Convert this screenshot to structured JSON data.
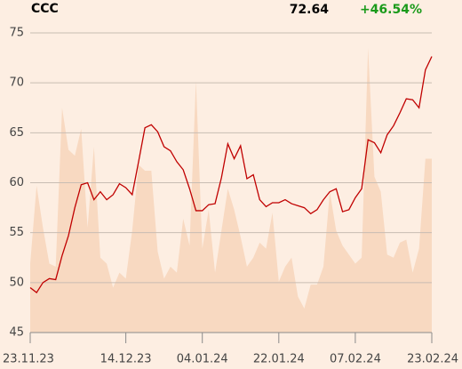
{
  "chart_data": {
    "type": "line",
    "title": "CCC",
    "last_value": "72.64",
    "change": "+46.54%",
    "change_color": "#1a9a1a",
    "color": "#c00000",
    "grid": true,
    "categories": [
      "23.11.23",
      null,
      null,
      null,
      null,
      null,
      null,
      null,
      null,
      null,
      null,
      null,
      null,
      null,
      null,
      "14.12.23",
      null,
      null,
      null,
      null,
      null,
      null,
      null,
      null,
      null,
      null,
      null,
      "04.01.24",
      null,
      null,
      null,
      null,
      null,
      null,
      null,
      null,
      null,
      null,
      null,
      "22.01.24",
      null,
      null,
      null,
      null,
      null,
      null,
      null,
      null,
      null,
      null,
      null,
      "07.02.24",
      null,
      null,
      null,
      null,
      null,
      null,
      null,
      null,
      null,
      null,
      null,
      "23.02.24"
    ],
    "values": [
      49.5,
      49.0,
      50.0,
      50.4,
      50.3,
      52.7,
      54.7,
      57.5,
      59.8,
      60.0,
      58.3,
      59.1,
      58.3,
      58.8,
      59.9,
      59.5,
      58.8,
      62.1,
      65.5,
      65.8,
      65.1,
      63.6,
      63.2,
      62.1,
      61.3,
      59.4,
      57.2,
      57.2,
      57.8,
      57.9,
      60.5,
      63.9,
      62.4,
      63.7,
      60.4,
      60.8,
      58.3,
      57.6,
      58.0,
      58.0,
      58.3,
      57.9,
      57.7,
      57.5,
      56.9,
      57.3,
      58.3,
      59.1,
      59.4,
      57.1,
      57.3,
      58.5,
      59.4,
      64.3,
      64.0,
      63.0,
      64.8,
      65.7,
      67.0,
      68.4,
      68.3,
      67.5,
      71.3,
      72.64
    ],
    "ylim": [
      45,
      75
    ],
    "yticks": [
      45,
      50,
      55,
      60,
      65,
      70,
      75
    ],
    "volume": {
      "color": "#f8d9c1",
      "values": [
        23,
        49,
        35,
        23,
        22,
        75,
        61,
        59,
        68,
        35,
        62,
        25,
        23,
        15,
        20,
        18,
        34,
        56,
        54,
        54,
        27,
        18,
        22,
        20,
        38,
        29,
        84,
        28,
        41,
        20,
        34,
        48,
        41,
        32,
        22,
        25,
        30,
        28,
        40,
        17,
        22,
        25,
        12,
        8,
        16,
        16,
        22,
        47,
        34,
        29,
        26,
        23,
        25,
        95,
        52,
        47,
        26,
        25,
        30,
        31,
        20,
        28,
        58,
        58
      ]
    },
    "y2lim": [
      0,
      100
    ]
  }
}
